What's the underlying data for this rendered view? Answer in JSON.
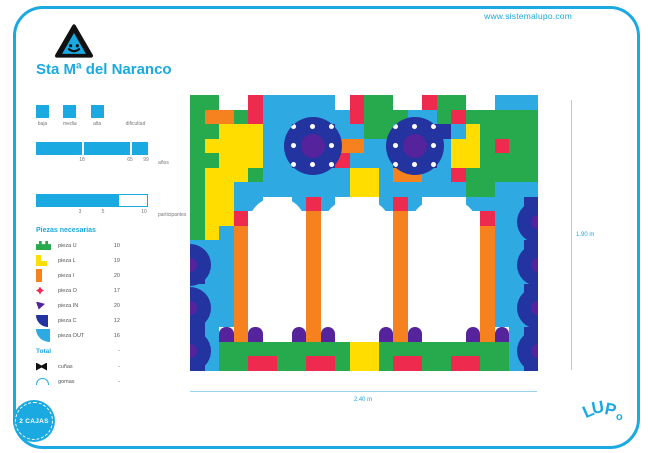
{
  "page": {
    "url": "www.sistemalupo.com",
    "title": "Sta Mª del Naranco",
    "badge": "2 CAJAS",
    "logo_letters": [
      "L",
      "U",
      "P",
      "o"
    ]
  },
  "colors": {
    "brand": "#1BA9E1",
    "dim_line": "#9AD3EE",
    "green": "#27A94E",
    "yellow": "#FFDD00",
    "orange": "#F5821F",
    "red": "#EE2A4F",
    "dark_blue": "#2333A0",
    "purple": "#55239B",
    "sky": "#2FA9E1"
  },
  "difficulty": {
    "levels": [
      "baja",
      "media",
      "alta"
    ],
    "label": "dificultad"
  },
  "ages": {
    "ticks": [
      "18",
      "65",
      "99"
    ],
    "label": "años"
  },
  "participants": {
    "ticks": [
      "3",
      "5",
      "10"
    ],
    "label": "participantes"
  },
  "pieces": {
    "header": "Piezas necesarias",
    "items": [
      {
        "label": "pieza U",
        "count": "10",
        "icon": "u",
        "color": "#27A94E"
      },
      {
        "label": "pieza L",
        "count": "19",
        "icon": "l",
        "color": "#FFDD00"
      },
      {
        "label": "pieza I",
        "count": "20",
        "icon": "i",
        "color": "#F5821F"
      },
      {
        "label": "pieza O",
        "count": "17",
        "icon": "o",
        "color": "#EE2A4F"
      },
      {
        "label": "pieza IN",
        "count": "20",
        "icon": "in",
        "color": "#55239B"
      },
      {
        "label": "pieza C",
        "count": "12",
        "icon": "c",
        "color": "#2333A0"
      },
      {
        "label": "pieza OUT",
        "count": "16",
        "icon": "out",
        "color": "#2FA9E1"
      }
    ],
    "total_label": "Total",
    "total_value": "-",
    "extras": [
      {
        "label": "cuñas",
        "value": "-",
        "icon": "cunas",
        "color": "#111111"
      },
      {
        "label": "gomas",
        "value": "-",
        "icon": "gomas",
        "color": "#1BA9E1"
      }
    ]
  },
  "dimensions": {
    "width_label": "2.40 m",
    "height_label": "1.90 m"
  },
  "mosaic": {
    "cols": 24,
    "rows": 19,
    "palette": {
      "G": "#27A94E",
      "Y": "#FFDD00",
      "C": "#2FA9E1",
      "B": "#2333A0",
      "P": "#55239B",
      "O": "#F5821F",
      "R": "#EE2A4F",
      "W": "#FFFFFF",
      ".": ""
    },
    "grid": [
      "GG..RCCCCC.RGG..RGG..CCC",
      "GOOGRCCCCCCRGGGCCGRGGGGG",
      "GGYYYCCBBBCCGGCBBBCYGGGG",
      "GYYYYCCBPBOOCCBPBCYYGRGG",
      "GGYYYCCBBBRCCCBBBCYYGGGG",
      "GYYYGCCCCCCYYCOOCCRGGGGG",
      "GYYCCCCCCCCYYCCCCCCGGCCC",
      "GYYCCWWCRCWWWCRCWWWCCCCB",
      "GYYRWWWWOWWWWWOWWWWWRCCB",
      "GYCOWWWWOWWWWWOWWWWWOCCC",
      "CCCOWWWWOWWWWWOWWWWWOCCB",
      "BCCOWWWWOWWWWWOWWWWWOCCB",
      "BCCOWWWWOWWWWWOWWWWWOCCC",
      "CCCOWWWWOWWWWWOWWWWWOCCB",
      "BCCOWWWWOWWWWWOWWWWWOCCB",
      "BCCOWWWWOWWWWWOWWWWWOCCC",
      "BCPOPWWPOPWWWPOPWWWPOPCB",
      "BCGGGGGGGGGYYGGGGGGGGGCB",
      "BCGGRRGGRRGYYGRRGGRRGGCB"
    ]
  }
}
